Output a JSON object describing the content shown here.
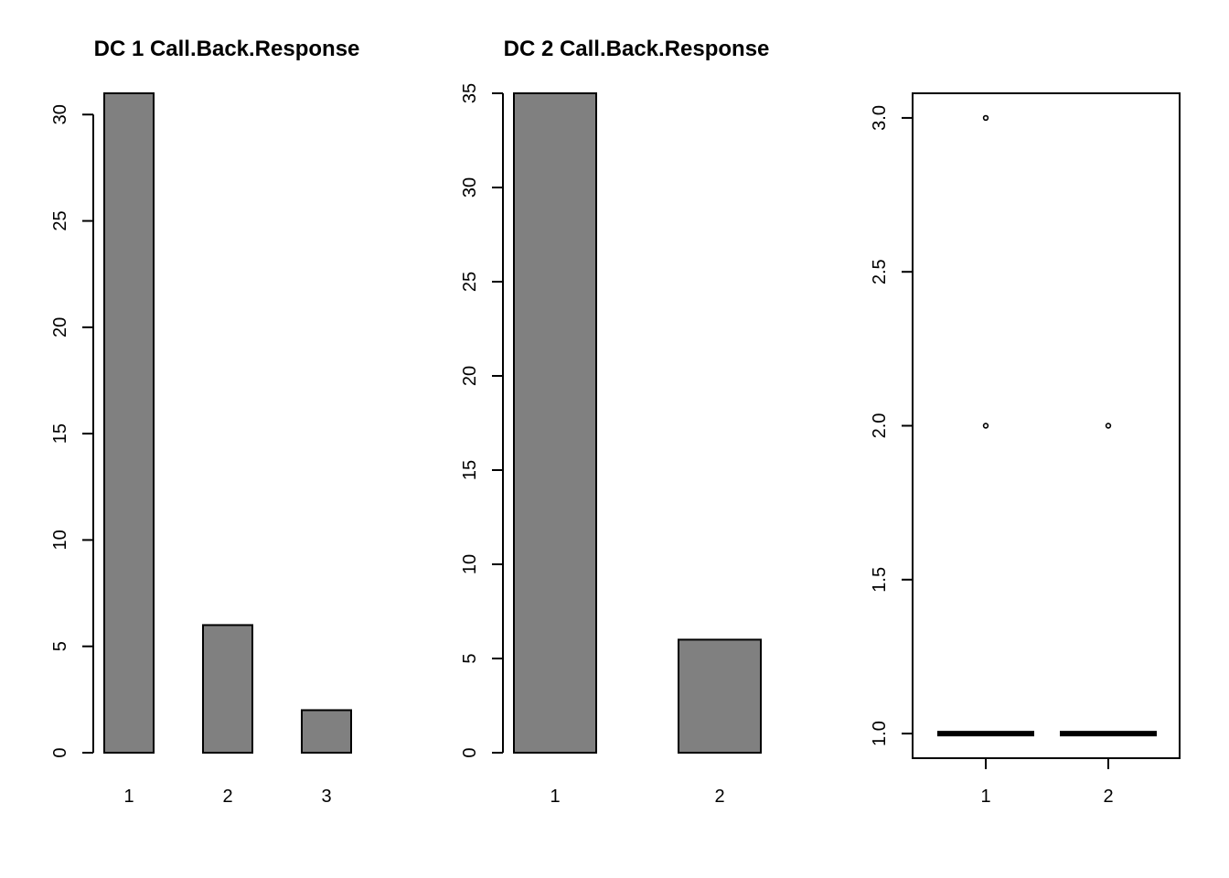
{
  "chart_data": [
    {
      "type": "bar",
      "title": "DC 1 Call.Back.Response",
      "categories": [
        "1",
        "2",
        "3"
      ],
      "values": [
        31,
        6,
        2
      ],
      "ylim": [
        0,
        31
      ],
      "yticks": [
        0,
        5,
        10,
        15,
        20,
        25,
        30
      ],
      "xlabel": "",
      "ylabel": "",
      "grid": false,
      "bar_color": "#808080"
    },
    {
      "type": "bar",
      "title": "DC 2 Call.Back.Response",
      "categories": [
        "1",
        "2"
      ],
      "values": [
        35,
        6
      ],
      "ylim": [
        0,
        35
      ],
      "yticks": [
        0,
        5,
        10,
        15,
        20,
        25,
        30,
        35
      ],
      "xlabel": "",
      "ylabel": "",
      "grid": false,
      "bar_color": "#808080"
    },
    {
      "type": "box",
      "title": "",
      "categories": [
        "1",
        "2"
      ],
      "boxes": [
        {
          "median": 1.0,
          "q1": 1.0,
          "q3": 1.0,
          "whisker_low": 1.0,
          "whisker_high": 1.0,
          "outliers": [
            2.0,
            3.0
          ]
        },
        {
          "median": 1.0,
          "q1": 1.0,
          "q3": 1.0,
          "whisker_low": 1.0,
          "whisker_high": 1.0,
          "outliers": [
            2.0
          ]
        }
      ],
      "ylim": [
        0.92,
        3.08
      ],
      "yticks": [
        "1.0",
        "1.5",
        "2.0",
        "2.5",
        "3.0"
      ],
      "xlabel": "",
      "ylabel": "",
      "grid": false
    }
  ]
}
